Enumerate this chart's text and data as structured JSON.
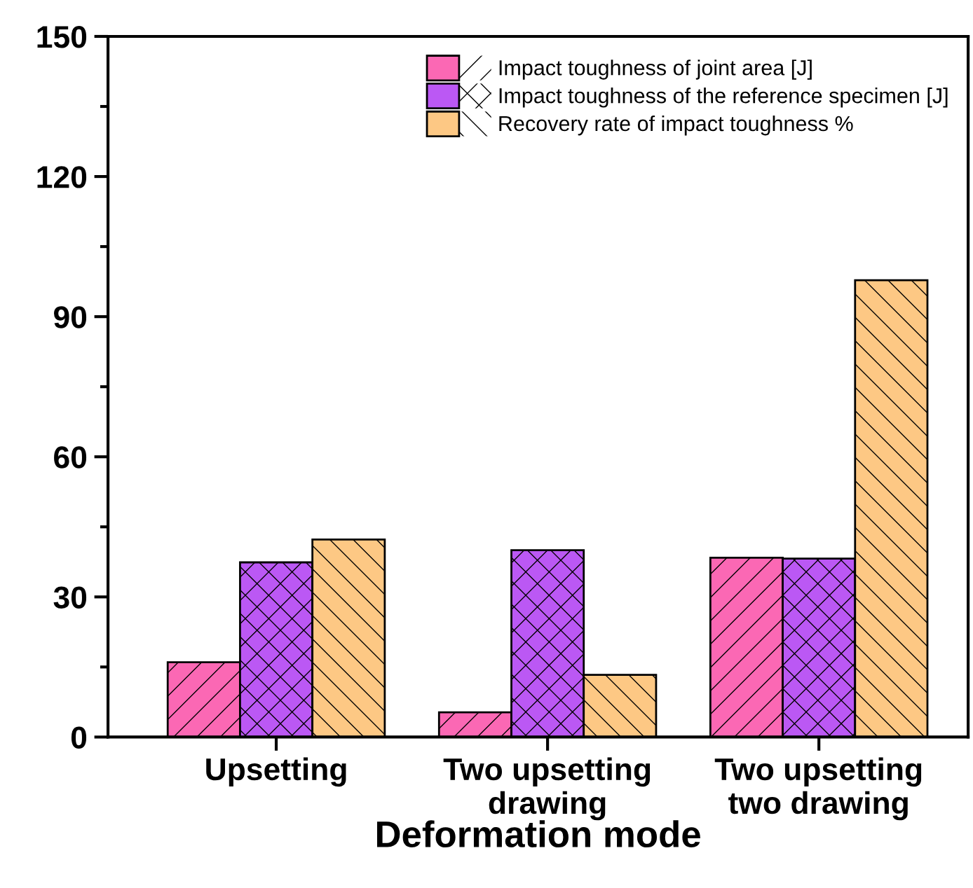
{
  "chart_data": {
    "type": "bar",
    "categories": [
      "Upsetting",
      "Two upsetting\ndrawing",
      "Two upsetting\ntwo drawing"
    ],
    "xlabel": "Deformation mode",
    "series": [
      {
        "name": "Impact toughness of joint area [J]",
        "color": "#fb68b4",
        "values": [
          16.0,
          5.3,
          38.4
        ]
      },
      {
        "name": "Impact toughness of the reference specimen [J]",
        "color": "#bb58f4",
        "values": [
          37.4,
          40.0,
          38.2
        ]
      },
      {
        "name": "Recovery rate of impact toughness %",
        "color": "#fdc884",
        "values": [
          42.3,
          13.3,
          97.8
        ]
      }
    ],
    "ylim": [
      0,
      150
    ],
    "yticks": [
      0,
      30,
      60,
      90,
      120,
      150
    ],
    "legend": "top right",
    "grid": false
  }
}
